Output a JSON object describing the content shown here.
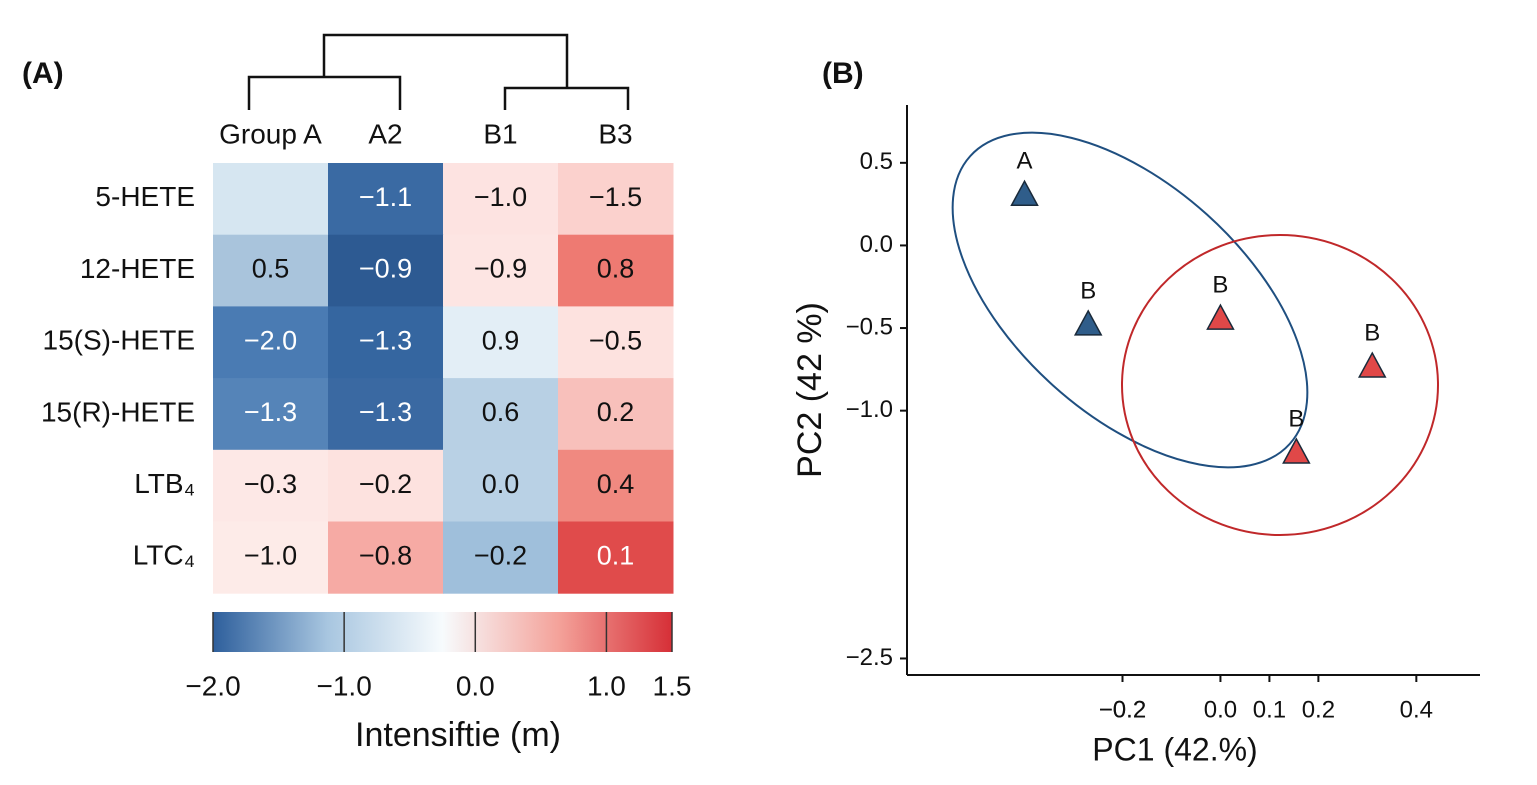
{
  "chart_data": [
    {
      "type": "heatmap",
      "panel_label": "(A)",
      "columns": [
        "Group A",
        "A2",
        "B1",
        "B3"
      ],
      "rows": [
        "5-HETE",
        "12-HETE",
        "15(S)-HETE",
        "15(R)-HETE",
        "LTB₄",
        "LTC₄"
      ],
      "values": [
        [
          -0.4,
          -1.1,
          -1.0,
          -1.5
        ],
        [
          0.5,
          -0.9,
          -0.9,
          0.8
        ],
        [
          -2.0,
          -1.3,
          0.9,
          -0.5
        ],
        [
          -1.3,
          -1.3,
          0.6,
          0.2
        ],
        [
          -0.3,
          -0.2,
          0.0,
          0.4
        ],
        [
          -1.0,
          -0.8,
          -0.2,
          0.1
        ]
      ],
      "value_labels": [
        [
          null,
          "−1.1",
          "−1.0",
          "−1.5"
        ],
        [
          "0.5",
          "−0.9",
          "−0.9",
          "0.8"
        ],
        [
          "−2.0",
          "−1.3",
          "0.9",
          "−0.5"
        ],
        [
          "−1.3",
          "−1.3",
          "0.6",
          "0.2"
        ],
        [
          "−0.3",
          "−0.2",
          "0.0",
          "0.4"
        ],
        [
          "−1.0",
          "−0.8",
          "−0.2",
          "0.1"
        ]
      ],
      "colors": [
        [
          "#d6e6f1",
          "#3a6aa3",
          "#fde3e1",
          "#fbd1cd"
        ],
        [
          "#a9c4dc",
          "#2d5a92",
          "#fde5e3",
          "#ee7a72"
        ],
        [
          "#4a7bb3",
          "#3566a0",
          "#e3eef6",
          "#fde2df"
        ],
        [
          "#5584b8",
          "#3a69a2",
          "#b8d0e4",
          "#f8c0bb"
        ],
        [
          "#fde8e6",
          "#fde2df",
          "#b9d1e5",
          "#f08980"
        ],
        [
          "#fdebe8",
          "#f6aaa4",
          "#9fbfdb",
          "#e04b4b"
        ]
      ],
      "colorbar": {
        "label": "Intensiftie (m)",
        "lim": [
          -2,
          1.5
        ],
        "colors": [
          "#2e5f9c",
          "#a8c6e0",
          "#f7fbfd",
          "#f4a39b",
          "#d62f37"
        ],
        "ticks": [
          {
            "value": -2,
            "label": "−2.0"
          },
          {
            "value": -1,
            "label": "−1.0"
          },
          {
            "value": 0,
            "label": "0.0"
          },
          {
            "value": 1,
            "label": "1.0"
          },
          1.5
        ]
      }
    },
    {
      "type": "scatter",
      "panel_label": "(B)",
      "xlabel": "PC1 (42.%)",
      "ylabel": "PC2 (42 %)",
      "xlim": [
        -0.64,
        0.53
      ],
      "ylim": [
        -2.6,
        0.85
      ],
      "xticks": [
        {
          "value": -0.2,
          "label": "−0.2"
        },
        {
          "value": -0.2,
          "label": "−0.2"
        },
        0.1,
        {
          "value": 0,
          "label": "0.0"
        },
        0.2,
        0.4
      ],
      "yticks": [
        0.5,
        {
          "value": 0,
          "label": "0.0"
        },
        {
          "value": -0.5,
          "label": "−0.5"
        },
        {
          "value": -1,
          "label": "−1.0"
        },
        {
          "value": -2.5,
          "label": "−2.5"
        }
      ],
      "series": [
        {
          "color": "#2f5d8a",
          "x": [
            -0.4,
            -0.27
          ],
          "y": [
            0.31,
            -0.475
          ],
          "labels": [
            "A",
            "B"
          ]
        },
        {
          "color": "#e04848",
          "x": [
            0.0,
            0.31,
            0.155
          ],
          "y": [
            -0.44,
            -0.73,
            -1.25
          ],
          "labels": [
            "B",
            "B",
            "B"
          ]
        }
      ]
    }
  ]
}
